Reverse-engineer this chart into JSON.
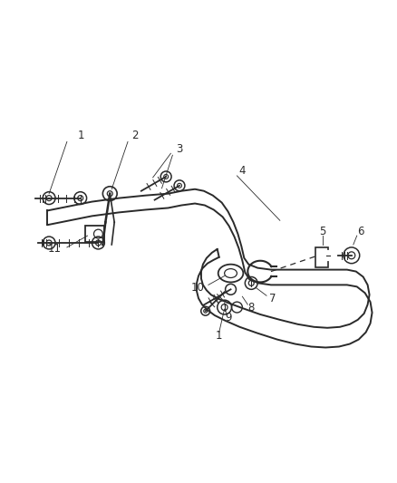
{
  "bg_color": "#ffffff",
  "line_color": "#2a2a2a",
  "label_fontsize": 8.5,
  "fig_width": 4.38,
  "fig_height": 5.33,
  "dpi": 100
}
